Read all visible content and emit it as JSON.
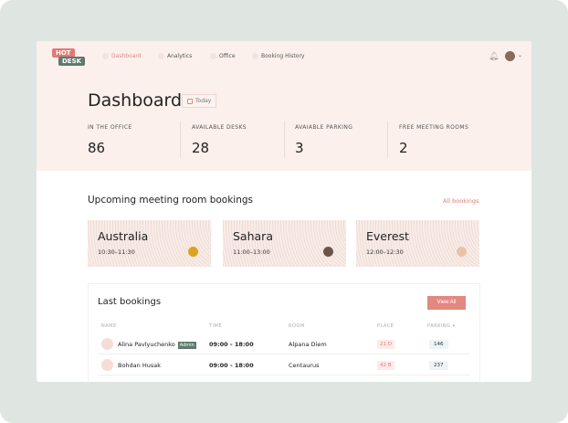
{
  "logo": {
    "line1": "HOT",
    "line2": "DESK"
  },
  "nav": [
    {
      "label": "Dashboard",
      "active": true
    },
    {
      "label": "Analytics"
    },
    {
      "label": "Office"
    },
    {
      "label": "Booking History"
    }
  ],
  "page": {
    "title": "Dashboard",
    "date_filter": "Today"
  },
  "stats": [
    {
      "label": "IN THE OFFICE",
      "value": "86"
    },
    {
      "label": "AVAILABLE DESKS",
      "value": "28"
    },
    {
      "label": "AVAIABLE PARKING",
      "value": "3"
    },
    {
      "label": "FREE MEETING ROOMS",
      "value": "2"
    }
  ],
  "upcoming": {
    "title": "Upcoming meeting room bookings",
    "link": "All bookings",
    "cards": [
      {
        "room": "Australia",
        "time": "10:30–11:30"
      },
      {
        "room": "Sahara",
        "time": "11:00–13:00"
      },
      {
        "room": "Everest",
        "time": "12:00–12:30"
      }
    ]
  },
  "last": {
    "title": "Last bookings",
    "view_all": "View All",
    "columns": [
      "NAME",
      "TIME",
      "ROOM",
      "PLACE",
      "PARKING ▾"
    ],
    "rows": [
      {
        "name": "Alina Pavlyuchenko",
        "badge": "Admin",
        "time": "09:00 - 18:00",
        "room": "Alpana Diem",
        "place": "21 D",
        "parking": "146"
      },
      {
        "name": "Bohdan Husak",
        "time": "09:00 - 18:00",
        "room": "Centaurus",
        "place": "42 B",
        "parking": "237"
      }
    ]
  },
  "colors": {
    "accent": "#e07a72",
    "green": "#5f7a6c",
    "hero": "#fbf0ec"
  }
}
